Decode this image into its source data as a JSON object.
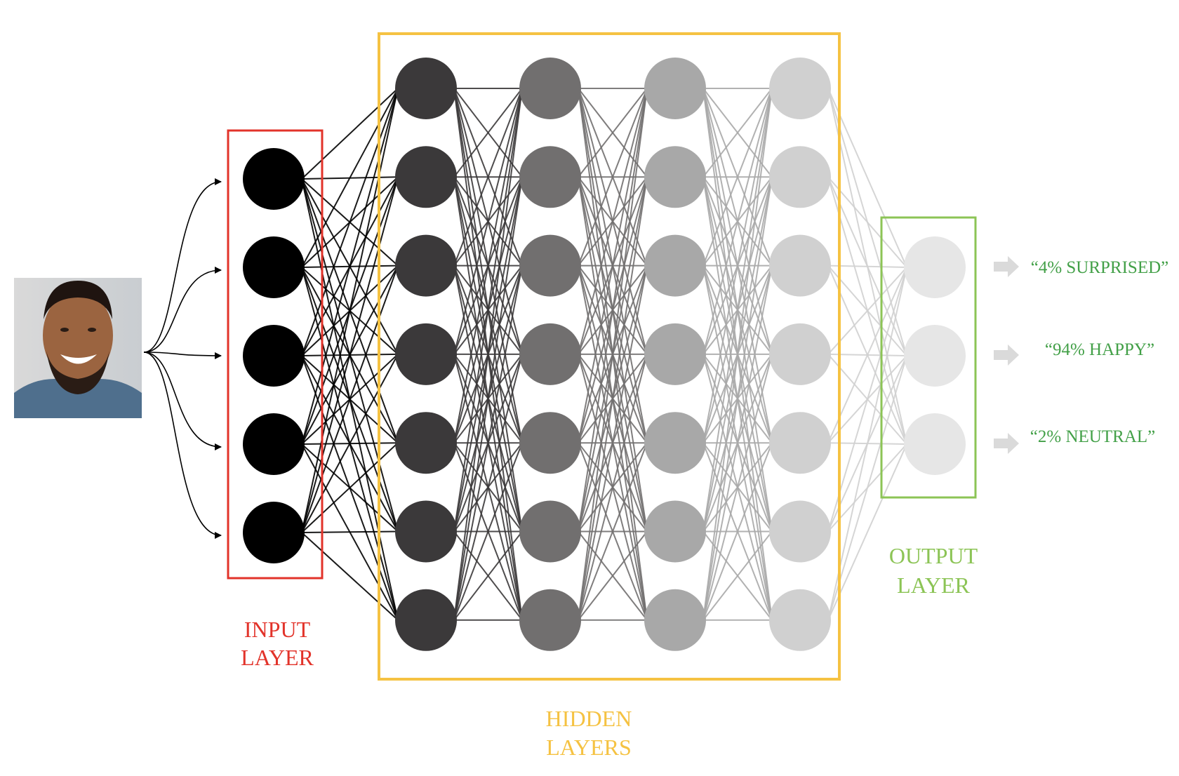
{
  "diagram": {
    "input_label": [
      "INPUT",
      "LAYER"
    ],
    "hidden_label": [
      "HIDDEN",
      "LAYERS"
    ],
    "output_label": [
      "OUTPUT",
      "LAYER"
    ],
    "outputs": [
      "“4% SURPRISED”",
      "“94% HAPPY”",
      "“2% NEUTRAL”"
    ],
    "photo": {
      "subject": "smiling-man-portrait"
    },
    "layers": [
      {
        "name": "input",
        "nodes": 5,
        "color": "#000000"
      },
      {
        "name": "hidden-1",
        "nodes": 7,
        "color": "#3b393a"
      },
      {
        "name": "hidden-2",
        "nodes": 7,
        "color": "#716f6f"
      },
      {
        "name": "hidden-3",
        "nodes": 7,
        "color": "#a8a8a8"
      },
      {
        "name": "hidden-4",
        "nodes": 7,
        "color": "#d0d0d0"
      },
      {
        "name": "output",
        "nodes": 3,
        "color": "#e6e6e6"
      }
    ],
    "colors": {
      "input_accent": "#e2332a",
      "hidden_accent": "#f5c242",
      "output_accent": "#8cc456",
      "output_text": "#43a048",
      "arrow_gray": "#dadada"
    }
  }
}
